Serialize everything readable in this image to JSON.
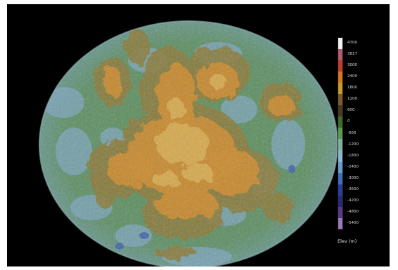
{
  "legend": {
    "unit_label": "Elev (m)",
    "ticks": [
      "4700",
      "3817",
      "3000",
      "2400",
      "1800",
      "1200",
      "600",
      "0",
      "-600",
      "-1200",
      "-1800",
      "-2400",
      "-3000",
      "-3600",
      "-4200",
      "-4800",
      "-5400"
    ],
    "colors": [
      "#f2f2f2",
      "#b55a6a",
      "#c23b2f",
      "#d6781f",
      "#c79a2a",
      "#7f5a2a",
      "#4a3a24",
      "#3f6b2f",
      "#5f9a4a",
      "#7fb0a0",
      "#8fb6cf",
      "#6b9ad0",
      "#3f6fb8",
      "#2a3f9a",
      "#2a2a7a",
      "#5a3a8a",
      "#9a7ab5"
    ]
  },
  "map": {
    "background": "#000000",
    "ocean": "#6f9fa6",
    "lowland": "#5e8f54",
    "midland": "#8a7a3a",
    "highland": "#c98a2e",
    "peak": "#d9b35a",
    "basin": "#7fa6c4",
    "deep": "#3f5fa8"
  }
}
